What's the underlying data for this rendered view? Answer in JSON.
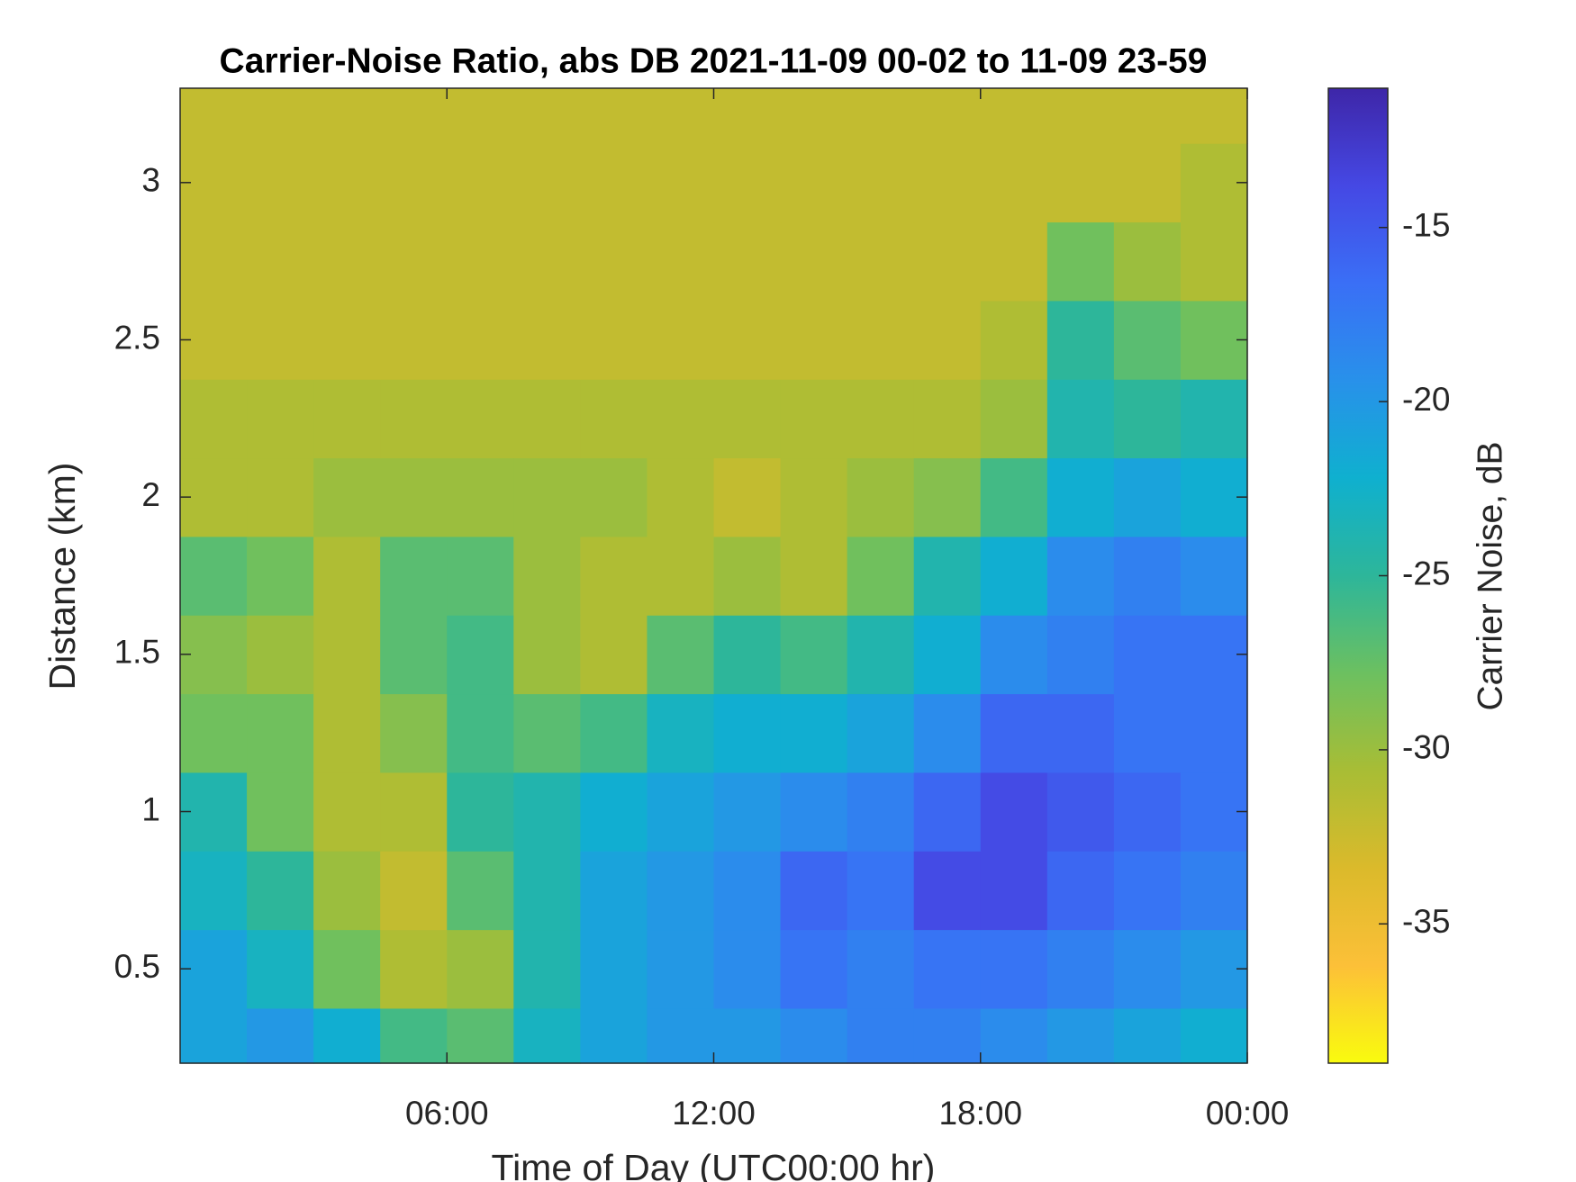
{
  "chart_data": {
    "type": "heatmap",
    "title": "Carrier-Noise Ratio, abs DB 2021-11-09 00-02 to 11-09 23-59",
    "x_label": "Time of Day (UTC00:00 hr)",
    "y_label": "Distance (km)",
    "colorbar_label": "Carrier Noise, dB",
    "xlim": [
      0,
      24
    ],
    "xticks": [
      {
        "value": 6,
        "label": "06:00"
      },
      {
        "value": 12,
        "label": "12:00"
      },
      {
        "value": 18,
        "label": "18:00"
      },
      {
        "value": 24,
        "label": "00:00"
      }
    ],
    "ylim": [
      0.2,
      3.3
    ],
    "yticks": [
      0.5,
      1,
      1.5,
      2,
      2.5,
      3
    ],
    "clim": [
      -39,
      -11
    ],
    "cticks": [
      -35,
      -30,
      -25,
      -20,
      -15
    ],
    "colormap": [
      "#f9fb0e",
      "#fcc038",
      "#dbba2b",
      "#a8bd35",
      "#6cc060",
      "#2db69a",
      "#0fb0cf",
      "#2891ea",
      "#3a6ff6",
      "#4548e4",
      "#3e26a8"
    ],
    "x": [
      0.75,
      2.25,
      3.75,
      5.25,
      6.75,
      8.25,
      9.75,
      11.25,
      12.75,
      14.25,
      15.75,
      17.25,
      18.75,
      20.25,
      21.75,
      23.25
    ],
    "y": [
      0.25,
      0.5,
      0.75,
      1,
      1.25,
      1.5,
      1.75,
      2,
      2.25,
      2.5,
      2.75,
      3,
      3.25
    ],
    "z": [
      [
        -21,
        -20,
        -22,
        -26,
        -27,
        -23,
        -21,
        -20,
        -20,
        -19,
        -18,
        -18,
        -19,
        -20,
        -21,
        -22
      ],
      [
        -21,
        -23,
        -28,
        -31,
        -30,
        -24,
        -21,
        -20,
        -19,
        -17,
        -18,
        -17,
        -17,
        -18,
        -19,
        -20
      ],
      [
        -23,
        -25,
        -30,
        -32,
        -27,
        -24,
        -21,
        -20,
        -19,
        -16,
        -17,
        -14,
        -14,
        -16,
        -17,
        -18
      ],
      [
        -24,
        -28,
        -31,
        -31,
        -25,
        -24,
        -22,
        -21,
        -20,
        -19,
        -18,
        -16,
        -14,
        -15,
        -16,
        -17
      ],
      [
        -28,
        -28,
        -31,
        -29,
        -26,
        -27,
        -26,
        -23,
        -22,
        -22,
        -21,
        -19,
        -16,
        -16,
        -17,
        -17
      ],
      [
        -29,
        -30,
        -31,
        -27,
        -26,
        -30,
        -31,
        -27,
        -25,
        -26,
        -24,
        -22,
        -19,
        -18,
        -17,
        -17
      ],
      [
        -27,
        -28,
        -31,
        -27,
        -27,
        -30,
        -31,
        -31,
        -30,
        -31,
        -28,
        -24,
        -22,
        -19,
        -18,
        -19
      ],
      [
        -31,
        -31,
        -30,
        -30,
        -30,
        -30,
        -30,
        -31,
        -32,
        -31,
        -30,
        -29,
        -26,
        -22,
        -21,
        -22
      ],
      [
        -31,
        -31,
        -31,
        -31,
        -31,
        -31,
        -31,
        -31,
        -31,
        -31,
        -31,
        -31,
        -30,
        -24,
        -25,
        -24
      ],
      [
        -32,
        -32,
        -32,
        -32,
        -32,
        -32,
        -32,
        -32,
        -32,
        -32,
        -32,
        -32,
        -31,
        -25,
        -27,
        -28
      ],
      [
        -32,
        -32,
        -32,
        -32,
        -32,
        -32,
        -32,
        -32,
        -32,
        -32,
        -32,
        -32,
        -32,
        -28,
        -30,
        -31
      ],
      [
        -32,
        -32,
        -32,
        -32,
        -32,
        -32,
        -32,
        -32,
        -32,
        -32,
        -32,
        -32,
        -32,
        -32,
        -32,
        -31
      ],
      [
        -32,
        -32,
        -32,
        -32,
        -32,
        -32,
        -32,
        -32,
        -32,
        -32,
        -32,
        -32,
        -32,
        -32,
        -32,
        -32
      ]
    ]
  }
}
